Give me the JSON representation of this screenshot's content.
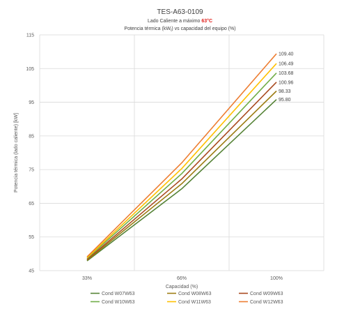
{
  "title": {
    "main": "TES-A63-0109",
    "line2_prefix": "Lado Caliente a máximo ",
    "line2_accent": "63°C",
    "line3_prefix": "Potencia térmica (kW",
    "line3_sub": "t",
    "line3_suffix": ") vs capacidad del equipo (%)"
  },
  "colors": {
    "accent": "#e0201b",
    "grid": "#d9d9d9",
    "text": "#404040"
  },
  "chart_data": {
    "type": "line",
    "categories": [
      "33%",
      "66%",
      "100%"
    ],
    "xlabel": "Capacidad (%)",
    "ylabel": "Potencia térmica (lado caliente) [kW]",
    "ylim": [
      45,
      115
    ],
    "yticks": [
      45,
      55,
      65,
      75,
      85,
      95,
      105,
      115
    ],
    "grid": true,
    "legend_position": "bottom",
    "series": [
      {
        "name": "Cond W07W63",
        "color": "#548235",
        "values": [
          47.9,
          69.3,
          95.8
        ],
        "end_label": "95.80"
      },
      {
        "name": "Cond W08W63",
        "color": "#9c7c12",
        "values": [
          48.1,
          70.8,
          98.33
        ],
        "end_label": "98.33"
      },
      {
        "name": "Cond W09W63",
        "color": "#a8491e",
        "values": [
          48.3,
          72.2,
          100.96
        ],
        "end_label": "100.96"
      },
      {
        "name": "Cond W10W63",
        "color": "#70ad47",
        "values": [
          48.6,
          73.8,
          103.68
        ],
        "end_label": "103.68"
      },
      {
        "name": "Cond W11W63",
        "color": "#ffc000",
        "values": [
          48.8,
          75.3,
          106.49
        ],
        "end_label": "106.49"
      },
      {
        "name": "Cond W12W63",
        "color": "#ed7d31",
        "values": [
          49.1,
          77.0,
          109.4
        ],
        "end_label": "109.40"
      }
    ]
  }
}
